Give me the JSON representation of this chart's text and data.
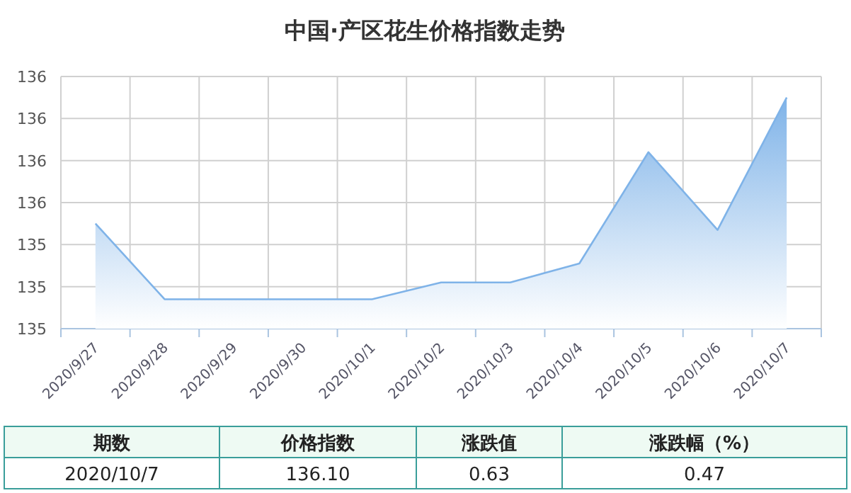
{
  "chart_data": {
    "type": "area",
    "title": "中国·产区花生价格指数走势",
    "categories": [
      "2020/9/27",
      "2020/9/28",
      "2020/9/29",
      "2020/9/30",
      "2020/10/1",
      "2020/10/2",
      "2020/10/3",
      "2020/10/4",
      "2020/10/5",
      "2020/10/6",
      "2020/10/7"
    ],
    "series": [
      {
        "color": "#7fb3e8",
        "values": [
          135.5,
          135.14,
          135.14,
          135.14,
          135.14,
          135.22,
          135.22,
          135.31,
          135.84,
          135.47,
          136.1
        ]
      }
    ],
    "ylim": [
      135.0,
      136.2
    ],
    "yticks": [
      {
        "value": 135.0,
        "label": "135"
      },
      {
        "value": 135.2,
        "label": "135"
      },
      {
        "value": 135.4,
        "label": "135"
      },
      {
        "value": 135.6,
        "label": "136"
      },
      {
        "value": 135.8,
        "label": "136"
      },
      {
        "value": 136.0,
        "label": "136"
      },
      {
        "value": 136.2,
        "label": "136"
      }
    ],
    "grid": true,
    "marker": "none",
    "annotations": [
      "期数",
      "价格指数",
      "涨跌值",
      "涨跌幅（%）",
      "2020/10/7",
      "136.10",
      "0.63",
      "0.47"
    ]
  }
}
